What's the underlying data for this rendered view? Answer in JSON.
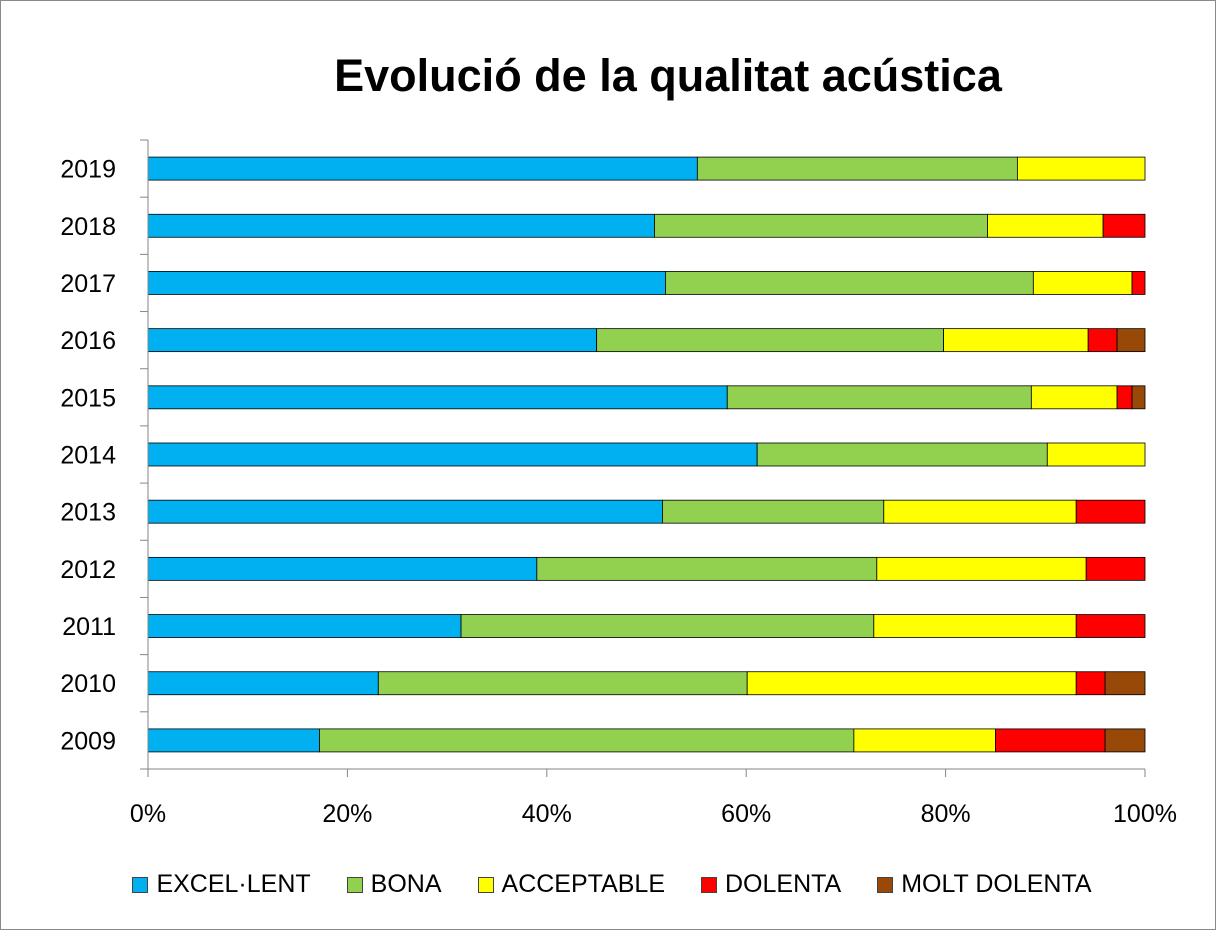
{
  "chart_data": {
    "type": "bar",
    "orientation": "horizontal",
    "stacked": "percent",
    "title": "Evolució de la qualitat acústica",
    "xlabel": "",
    "ylabel": "",
    "xlim": [
      0,
      100
    ],
    "x_ticks": [
      "0%",
      "20%",
      "40%",
      "60%",
      "80%",
      "100%"
    ],
    "grid": false,
    "legend_position": "bottom",
    "categories": [
      "2019",
      "2018",
      "2017",
      "2016",
      "2015",
      "2014",
      "2013",
      "2012",
      "2011",
      "2010",
      "2009"
    ],
    "series": [
      {
        "name": "EXCEL·LENT",
        "color": "#00B0F0",
        "values": [
          55.1,
          50.8,
          51.9,
          45.0,
          58.1,
          61.1,
          51.6,
          39.0,
          31.4,
          23.1,
          17.2
        ]
      },
      {
        "name": "BONA",
        "color": "#92D050",
        "values": [
          32.1,
          33.4,
          36.9,
          34.8,
          30.5,
          29.1,
          22.2,
          34.1,
          41.4,
          37.0,
          53.6
        ]
      },
      {
        "name": "ACCEPTABLE",
        "color": "#FFFF00",
        "values": [
          12.8,
          11.6,
          9.9,
          14.5,
          8.6,
          9.8,
          19.3,
          21.0,
          20.3,
          33.0,
          14.2
        ]
      },
      {
        "name": "DOLENTA",
        "color": "#FF0000",
        "values": [
          0,
          4.2,
          1.3,
          2.9,
          1.5,
          0,
          6.9,
          5.9,
          6.9,
          2.9,
          11.0
        ]
      },
      {
        "name": "MOLT DOLENTA",
        "color": "#984807",
        "values": [
          0,
          0,
          0,
          2.8,
          1.3,
          0,
          0,
          0,
          0,
          4.0,
          4.0
        ]
      }
    ]
  }
}
